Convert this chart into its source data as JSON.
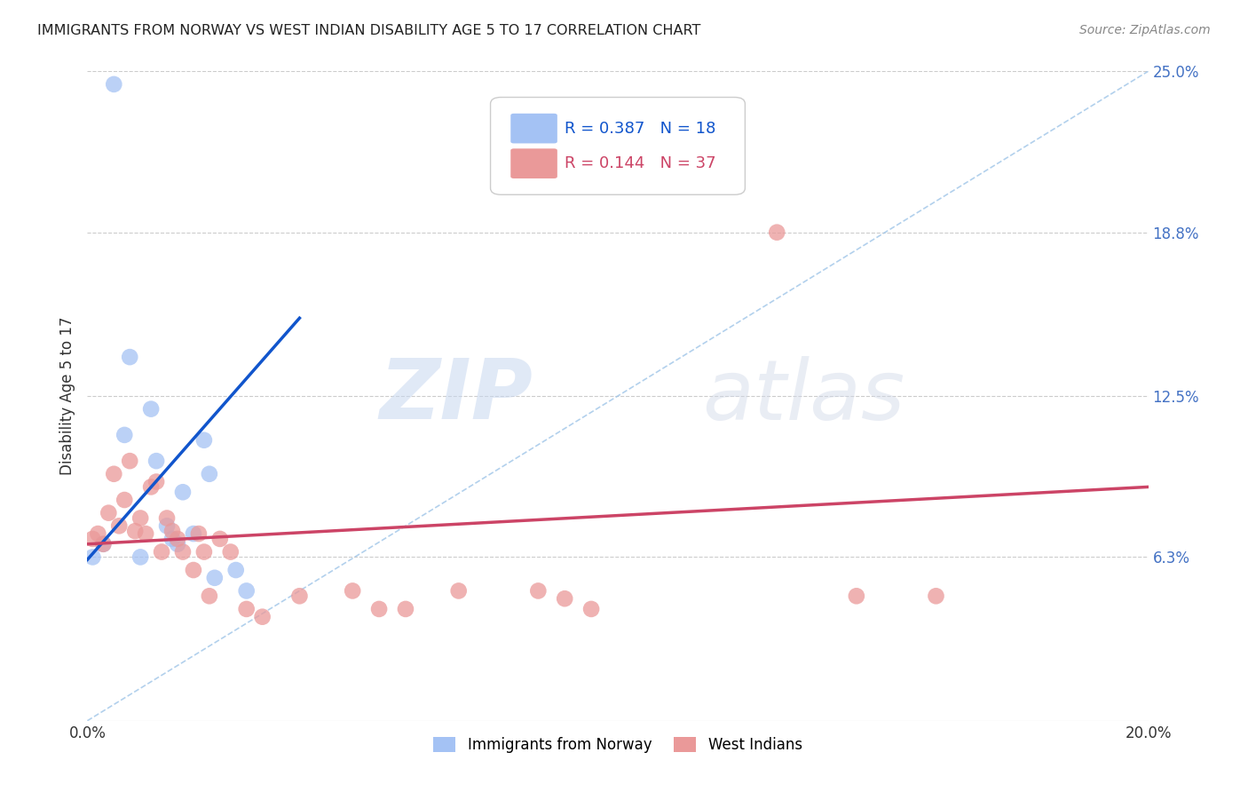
{
  "title": "IMMIGRANTS FROM NORWAY VS WEST INDIAN DISABILITY AGE 5 TO 17 CORRELATION CHART",
  "source": "Source: ZipAtlas.com",
  "ylabel": "Disability Age 5 to 17",
  "ylabel_right_labels": [
    "25.0%",
    "18.8%",
    "12.5%",
    "6.3%"
  ],
  "ylabel_right_values": [
    0.25,
    0.188,
    0.125,
    0.063
  ],
  "xlim": [
    0.0,
    0.2
  ],
  "ylim": [
    0.0,
    0.25
  ],
  "norway_color": "#a4c2f4",
  "westindian_color": "#ea9999",
  "norway_line_color": "#1155cc",
  "westindian_line_color": "#cc4466",
  "diagonal_color": "#9fc5e8",
  "legend_norway_R": "0.387",
  "legend_norway_N": "18",
  "legend_westindian_R": "0.144",
  "legend_westindian_N": "37",
  "norway_x": [
    0.001,
    0.003,
    0.005,
    0.007,
    0.008,
    0.01,
    0.012,
    0.013,
    0.015,
    0.016,
    0.017,
    0.018,
    0.02,
    0.022,
    0.023,
    0.024,
    0.028,
    0.03
  ],
  "norway_y": [
    0.063,
    0.068,
    0.245,
    0.11,
    0.14,
    0.063,
    0.12,
    0.1,
    0.075,
    0.07,
    0.068,
    0.088,
    0.072,
    0.108,
    0.095,
    0.055,
    0.058,
    0.05
  ],
  "westindian_x": [
    0.001,
    0.002,
    0.003,
    0.004,
    0.005,
    0.006,
    0.007,
    0.008,
    0.009,
    0.01,
    0.011,
    0.012,
    0.013,
    0.014,
    0.015,
    0.016,
    0.017,
    0.018,
    0.02,
    0.021,
    0.022,
    0.023,
    0.025,
    0.027,
    0.03,
    0.033,
    0.04,
    0.05,
    0.055,
    0.06,
    0.07,
    0.085,
    0.09,
    0.095,
    0.13,
    0.145,
    0.16
  ],
  "westindian_y": [
    0.07,
    0.072,
    0.068,
    0.08,
    0.095,
    0.075,
    0.085,
    0.1,
    0.073,
    0.078,
    0.072,
    0.09,
    0.092,
    0.065,
    0.078,
    0.073,
    0.07,
    0.065,
    0.058,
    0.072,
    0.065,
    0.048,
    0.07,
    0.065,
    0.043,
    0.04,
    0.048,
    0.05,
    0.043,
    0.043,
    0.05,
    0.05,
    0.047,
    0.043,
    0.188,
    0.048,
    0.048
  ],
  "watermark_zip": "ZIP",
  "watermark_atlas": "atlas",
  "grid_color": "#cccccc",
  "background_color": "#ffffff",
  "norway_line_start_x": 0.0,
  "norway_line_start_y": 0.062,
  "norway_line_end_x": 0.04,
  "norway_line_end_y": 0.155,
  "wi_line_start_x": 0.0,
  "wi_line_start_y": 0.068,
  "wi_line_end_x": 0.2,
  "wi_line_end_y": 0.09
}
